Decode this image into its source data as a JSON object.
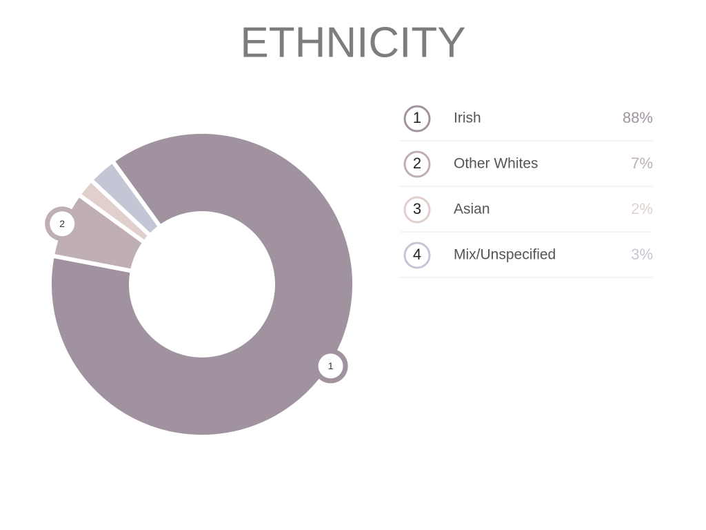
{
  "chart_data": {
    "type": "pie",
    "title": "ETHNICITY",
    "categories": [
      "Irish",
      "Other Whites",
      "Asian",
      "Mix/Unspecified"
    ],
    "markers": [
      "1",
      "2",
      "3",
      "4"
    ],
    "values": [
      88,
      7,
      2,
      3
    ],
    "value_labels": [
      "88%",
      "7%",
      "2%",
      "3%"
    ],
    "colors": [
      "#a0939f",
      "#bfaeb2",
      "#e0cfcc",
      "#c4c6d6"
    ]
  }
}
